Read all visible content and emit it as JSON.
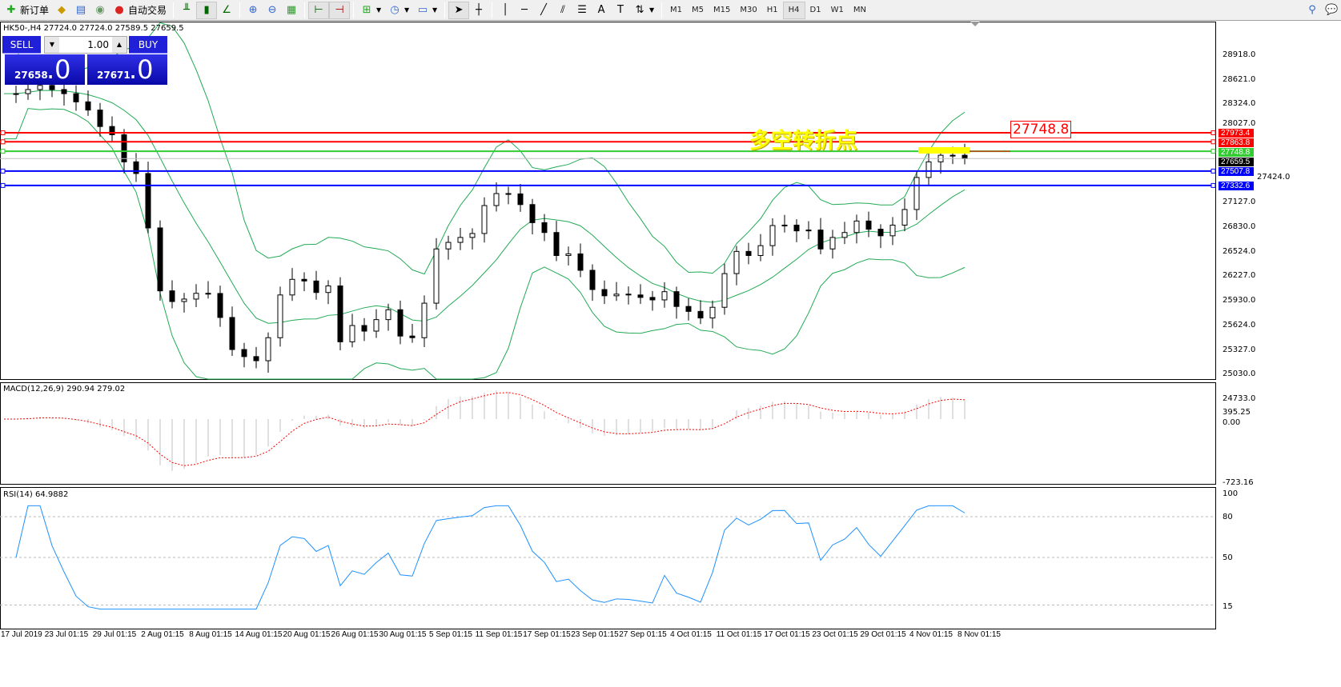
{
  "toolbar": {
    "new_order": "新订单",
    "auto_trading": "自动交易",
    "timeframes": [
      "M1",
      "M5",
      "M15",
      "M30",
      "H1",
      "H4",
      "D1",
      "W1",
      "MN"
    ],
    "active_timeframe": "H4"
  },
  "chart": {
    "title": "HK50-,H4  27724.0 27724.0 27589.5 27659.5",
    "annotation": "多空转折点",
    "price_box": "27748.8"
  },
  "trade_panel": {
    "sell": "SELL",
    "buy": "BUY",
    "lot": "1.00",
    "sell_price": "27658",
    "sell_big": ".0",
    "buy_price": "27671",
    "buy_big": ".0"
  },
  "price_axis": [
    "28918.0",
    "28621.0",
    "28324.0",
    "28027.0",
    "27424.0",
    "27127.0",
    "26830.0",
    "26524.0",
    "26227.0",
    "25930.0",
    "25624.0",
    "25327.0",
    "25030.0",
    "24733.0"
  ],
  "levels": [
    {
      "price": "27973.4",
      "color": "#ff0000"
    },
    {
      "price": "27863.8",
      "color": "#ff0000"
    },
    {
      "price": "27748.8",
      "color": "#33cc33"
    },
    {
      "price": "27659.5",
      "color": "#000000"
    },
    {
      "price": "27507.8",
      "color": "#0000ff"
    },
    {
      "price": "27332.6",
      "color": "#0000ff"
    }
  ],
  "macd": {
    "label": "MACD(12,26,9) 290.94 279.02",
    "axis": [
      "395.25",
      "0.00",
      "-723.16"
    ]
  },
  "rsi": {
    "label": "RSI(14) 64.9882",
    "axis": [
      "100",
      "80",
      "50",
      "15"
    ]
  },
  "time_axis": [
    "17 Jul 2019",
    "23 Jul 01:15",
    "29 Jul 01:15",
    "2 Aug 01:15",
    "8 Aug 01:15",
    "14 Aug 01:15",
    "20 Aug 01:15",
    "26 Aug 01:15",
    "30 Aug 01:15",
    "5 Sep 01:15",
    "11 Sep 01:15",
    "17 Sep 01:15",
    "23 Sep 01:15",
    "27 Sep 01:15",
    "4 Oct 01:15",
    "11 Oct 01:15",
    "17 Oct 01:15",
    "23 Oct 01:15",
    "29 Oct 01:15",
    "4 Nov 01:15",
    "8 Nov 01:15"
  ],
  "chart_data": {
    "type": "candlestick",
    "symbol": "HK50-",
    "timeframe": "H4",
    "ylim": [
      24733,
      28918
    ],
    "close": [
      28450,
      28450,
      28500,
      28550,
      28500,
      28450,
      28350,
      28250,
      28050,
      27950,
      27620,
      27478,
      26816,
      26050,
      25920,
      25950,
      26020,
      26018,
      25726,
      25336,
      25250,
      25200,
      25480,
      26000,
      26190,
      26170,
      26030,
      26110,
      25430,
      25628,
      25560,
      25700,
      25820,
      25500,
      25480,
      25900,
      26560,
      26640,
      26700,
      26748,
      27088,
      27234,
      27230,
      27100,
      26880,
      26760,
      26480,
      26500,
      26300,
      26066,
      25990,
      26010,
      26000,
      25970,
      25940,
      26040,
      25860,
      25800,
      25720,
      25850,
      26260,
      26530,
      26480,
      26600,
      26845,
      26850,
      26780,
      26790,
      26560,
      26700,
      26760,
      26900,
      26800,
      26720,
      26850,
      27040,
      27430,
      27620,
      27700,
      27700,
      27659.5
    ],
    "colors": {
      "bands": "#22aa55",
      "macd_hist": "#c0c0c0",
      "macd_signal": "#ff0000",
      "rsi": "#1e90ff"
    }
  }
}
